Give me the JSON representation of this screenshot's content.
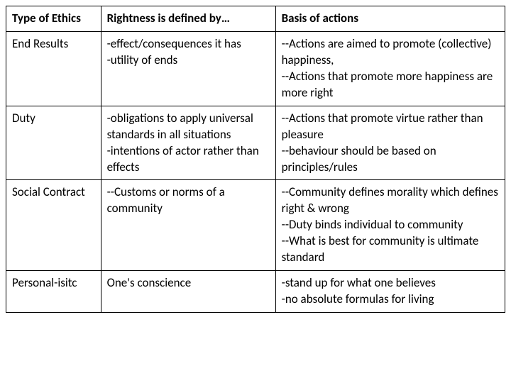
{
  "table": {
    "columns": [
      {
        "header": "Type of Ethics",
        "width_pct": 19
      },
      {
        "header": "Rightness is defined by…",
        "width_pct": 35
      },
      {
        "header": "Basis of actions",
        "width_pct": 46
      }
    ],
    "rows": [
      {
        "type": "End Results",
        "rightness": "-effect/consequences it has\n-utility of ends",
        "basis": "--Actions are aimed to promote (collective) happiness,\n--Actions that promote more happiness are more right"
      },
      {
        "type": "Duty",
        "rightness": "-obligations to apply universal standards in all situations\n-intentions of actor rather than effects",
        "basis": "--Actions that promote virtue rather than pleasure\n--behaviour should be based on principles/rules"
      },
      {
        "type": "Social Contract",
        "rightness": "--Customs or norms of a community",
        "basis": "--Community defines morality which defines right & wrong\n--Duty binds individual to community\n--What is best for community is ultimate standard"
      },
      {
        "type": "Personal-isitc",
        "rightness": "One's conscience",
        "basis": "-stand up for what one believes\n-no absolute formulas for living"
      }
    ],
    "border_color": "#000000",
    "background_color": "#ffffff",
    "font_size_pt": 17,
    "font_family": "Calibri"
  }
}
